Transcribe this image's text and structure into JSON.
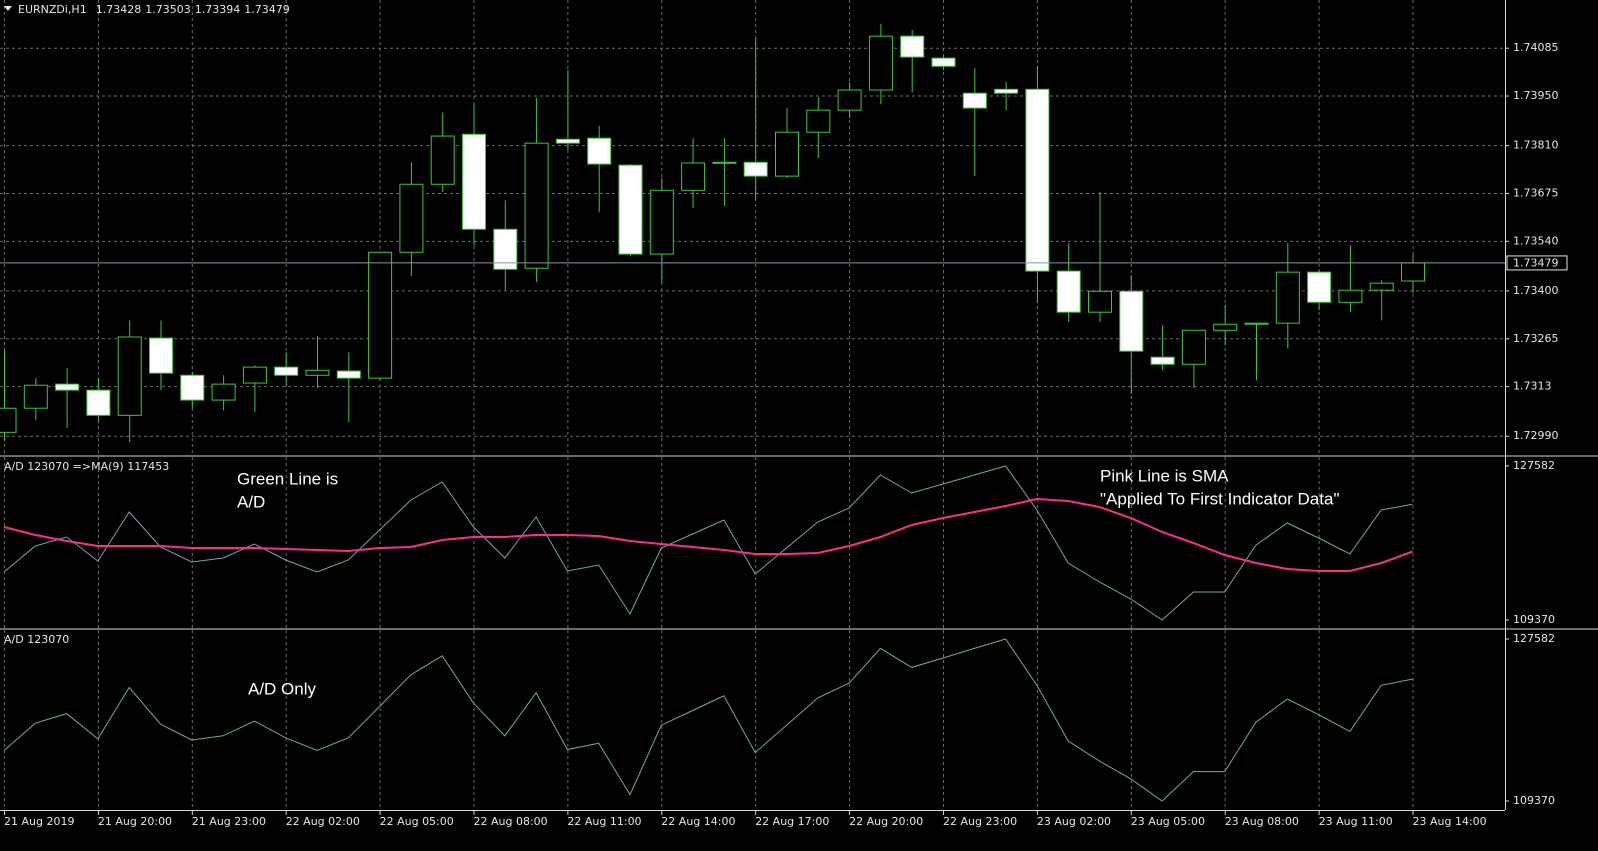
{
  "chart_data": [
    {
      "type": "candlestick",
      "title": "EURNZDi,H1",
      "readout": [
        1.73428,
        1.73503,
        1.73394,
        1.73479
      ],
      "categories": [
        "21 Aug 2019",
        null,
        null,
        "21 Aug 20:00",
        null,
        null,
        "21 Aug 23:00",
        null,
        null,
        "22 Aug 02:00",
        null,
        null,
        "22 Aug 05:00",
        null,
        null,
        "22 Aug 08:00",
        null,
        null,
        "22 Aug 11:00",
        null,
        null,
        "22 Aug 14:00",
        null,
        null,
        "22 Aug 17:00",
        null,
        null,
        "22 Aug 20:00",
        null,
        null,
        "22 Aug 23:00",
        null,
        null,
        "23 Aug 02:00",
        null,
        null,
        "23 Aug 05:00",
        null,
        null,
        "23 Aug 08:00",
        null,
        null,
        "23 Aug 11:00",
        null,
        null,
        "23 Aug 14:00"
      ],
      "open": [
        1.73001,
        1.73069,
        1.73137,
        1.7312,
        1.73049,
        1.73267,
        1.73162,
        1.73092,
        1.7314,
        1.73185,
        1.73162,
        1.73174,
        1.73154,
        1.73509,
        1.73701,
        1.73842,
        1.73574,
        1.73464,
        1.73828,
        1.73831,
        1.73755,
        1.73504,
        1.73684,
        1.73761,
        1.73763,
        1.73724,
        1.73848,
        1.7391,
        1.73967,
        1.74119,
        1.74057,
        1.73958,
        1.73969,
        1.73969,
        1.73456,
        1.7334,
        1.73399,
        1.73213,
        1.73193,
        1.73289,
        1.73306,
        1.73309,
        1.73453,
        1.73368,
        1.73402,
        1.73428
      ],
      "high": [
        1.73233,
        1.73154,
        1.73182,
        1.73154,
        1.73317,
        1.73317,
        1.73171,
        1.73162,
        1.7319,
        1.73227,
        1.73272,
        1.73227,
        1.73509,
        1.73763,
        1.73904,
        1.73927,
        1.73656,
        1.73944,
        1.74023,
        1.73865,
        1.73758,
        1.73718,
        1.73831,
        1.73831,
        1.74113,
        1.73916,
        1.73947,
        1.73989,
        1.74153,
        1.74136,
        1.7406,
        1.74029,
        1.73989,
        1.74034,
        1.73535,
        1.73679,
        1.73444,
        1.73303,
        1.73289,
        1.7336,
        1.73309,
        1.73535,
        1.73461,
        1.73529,
        1.7343,
        1.73503
      ],
      "low": [
        1.72979,
        1.73035,
        1.73013,
        1.73035,
        1.72973,
        1.7312,
        1.73069,
        1.73063,
        1.73058,
        1.73134,
        1.73126,
        1.7303,
        1.73148,
        1.73442,
        1.73679,
        1.73529,
        1.73402,
        1.73425,
        1.73797,
        1.73622,
        1.73498,
        1.73422,
        1.73634,
        1.73639,
        1.73656,
        1.73718,
        1.73775,
        1.73888,
        1.73927,
        1.73961,
        1.74023,
        1.73724,
        1.7391,
        1.73368,
        1.73312,
        1.73312,
        1.73109,
        1.73176,
        1.73126,
        1.73247,
        1.73148,
        1.73238,
        1.73346,
        1.7334,
        1.73317,
        1.73394
      ],
      "close": [
        1.73069,
        1.73134,
        1.7312,
        1.73049,
        1.7327,
        1.73168,
        1.73092,
        1.73137,
        1.73185,
        1.73162,
        1.73176,
        1.73154,
        1.73509,
        1.73701,
        1.73837,
        1.73574,
        1.73461,
        1.73817,
        1.73817,
        1.73758,
        1.73504,
        1.73684,
        1.73761,
        1.73763,
        1.73724,
        1.73848,
        1.7391,
        1.73967,
        1.74119,
        1.7406,
        1.74034,
        1.73916,
        1.73958,
        1.73456,
        1.7334,
        1.73399,
        1.7323,
        1.73193,
        1.73289,
        1.73306,
        1.73309,
        1.73453,
        1.73368,
        1.73402,
        1.73422,
        1.73479
      ],
      "up_color": "#000000",
      "down_color": "#ffffff",
      "outline_color": "#3cc83c",
      "ylim": [
        1.72937,
        1.74221
      ],
      "yticks": [
        1.74085,
        {
          "value": 1.7395,
          "label": "1.73950"
        },
        {
          "value": 1.7381,
          "label": "1.73810"
        },
        1.73675,
        {
          "value": 1.7354,
          "label": "1.73540"
        },
        {
          "value": 1.734,
          "label": "1.73400"
        },
        1.73265,
        1.7313,
        {
          "value": 1.7299,
          "label": "1.72990"
        }
      ],
      "grid": true
    },
    {
      "type": "line",
      "title": "A/D 123070  =>MA(9) 117453",
      "annotations": [
        [
          "Green Line is",
          "A/D"
        ],
        [
          "Pink Line is SMA",
          "\"Applied To First Indicator Data\""
        ]
      ],
      "series": [
        {
          "color": "#6fa8a8",
          "values": [
            115050,
            118120,
            119190,
            116350,
            122140,
            118000,
            116230,
            116700,
            118360,
            116470,
            115050,
            116470,
            120010,
            123560,
            125690,
            120370,
            116700,
            121550,
            115160,
            115870,
            110080,
            117890,
            119540,
            121200,
            114810,
            117890,
            120960,
            122620,
            126520,
            124390,
            125450,
            126520,
            127582,
            122380,
            116110,
            113860,
            111850,
            109370,
            112680,
            112680,
            118240,
            120840,
            119070,
            117180,
            122380,
            123070
          ]
        },
        {
          "color": "#ff2d8a",
          "values": [
            120370,
            119420,
            118710,
            118120,
            118120,
            118120,
            117890,
            117890,
            117890,
            117770,
            117650,
            117530,
            117890,
            118000,
            118830,
            119190,
            119190,
            119420,
            119420,
            119300,
            118710,
            118360,
            118000,
            117650,
            117180,
            117180,
            117290,
            118120,
            119190,
            120600,
            121430,
            122140,
            122850,
            123680,
            123440,
            122730,
            121430,
            119780,
            118480,
            117060,
            116110,
            115400,
            115160,
            115160,
            116110,
            117453
          ]
        }
      ],
      "ylim": [
        108424,
        128646
      ],
      "yticks": [
        109370,
        127582
      ]
    },
    {
      "type": "line",
      "title": "A/D 123070",
      "annotations": [
        [
          "A/D Only"
        ]
      ],
      "series": [
        {
          "color": "#6fa8a8",
          "values": [
            115050,
            118120,
            119190,
            116350,
            122140,
            118000,
            116230,
            116700,
            118360,
            116470,
            115050,
            116470,
            120010,
            123560,
            125690,
            120370,
            116700,
            121550,
            115160,
            115870,
            110080,
            117890,
            119540,
            121200,
            114810,
            117890,
            120960,
            122620,
            126520,
            124390,
            125450,
            126520,
            127582,
            122380,
            116110,
            113860,
            111850,
            109370,
            112680,
            112680,
            118240,
            120840,
            119070,
            117180,
            122380,
            123070
          ]
        }
      ],
      "ylim": [
        108358,
        128594
      ],
      "yticks": [
        109370,
        127582
      ]
    }
  ]
}
